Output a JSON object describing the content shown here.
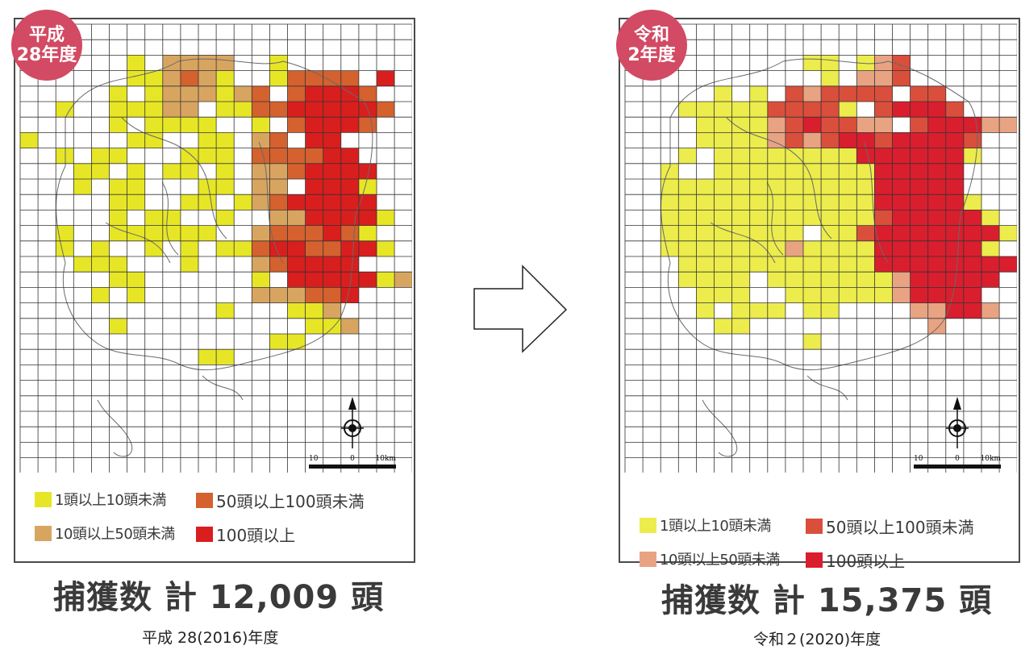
{
  "legend_labels": {
    "l1": "1頭以上10頭未満",
    "l2": "50頭以上100頭未満",
    "l3": "10頭以上50頭未満",
    "l4": "100頭以上"
  },
  "left": {
    "badge_line1": "平成",
    "badge_line2": "28年度",
    "total": "捕獲数 計 12,009 頭",
    "caption": "平成 28(2016)年度",
    "scale_labels": [
      "10",
      "0",
      "10km"
    ],
    "colors": {
      "c1": "#e6e626",
      "c2": "#d8a561",
      "c3": "#d4612e",
      "c4": "#d91e1e"
    }
  },
  "right": {
    "badge_line1": "令和",
    "badge_line2": "2年度",
    "total": "捕獲数 計 15,375 頭",
    "caption": "令和２(2020)年度",
    "scale_labels": [
      "10",
      "0",
      "10km"
    ],
    "colors": {
      "c1": "#ecec4c",
      "c2": "#e8a382",
      "c3": "#d94f3c",
      "c4": "#d91e2e"
    }
  },
  "arrow": "right-arrow-icon"
}
